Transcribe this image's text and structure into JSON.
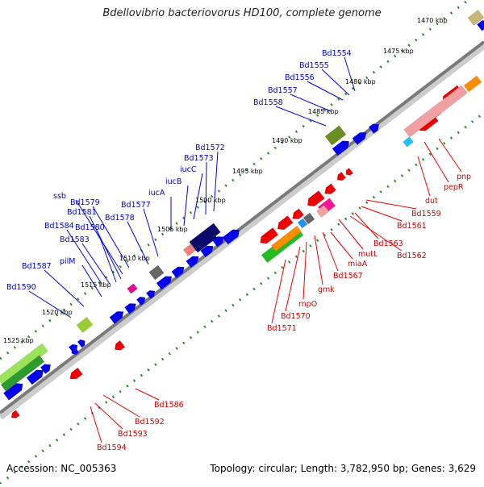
{
  "title": "Bdellovibrio bacteriovorus HD100, complete genome",
  "footer": {
    "accession": "Accession: NC_005363",
    "summary": "Topology: circular; Length: 3,782,950 bp; Genes: 3,629"
  },
  "colors": {
    "forward_cds": "#0000ee",
    "forward_label": "#0000cc",
    "reverse_cds": "#ee0000",
    "reverse_label": "#cc0000",
    "backbone": "#888888",
    "ruler_dots": "#2e8b2e"
  },
  "ruler_labels": [
    {
      "text": "1470 kbp",
      "kbp": 1470
    },
    {
      "text": "1475 kbp",
      "kbp": 1475
    },
    {
      "text": "1480 kbp",
      "kbp": 1480
    },
    {
      "text": "1485 kbp",
      "kbp": 1485
    },
    {
      "text": "1490 kbp",
      "kbp": 1490
    },
    {
      "text": "1495 kbp",
      "kbp": 1495
    },
    {
      "text": "1500 kbp",
      "kbp": 1500
    },
    {
      "text": "1505 kbp",
      "kbp": 1505
    },
    {
      "text": "1510 kbp",
      "kbp": 1510
    },
    {
      "text": "1515 kbp",
      "kbp": 1515
    },
    {
      "text": "1520 kbp",
      "kbp": 1520
    },
    {
      "text": "1525 kbp",
      "kbp": 1525
    }
  ],
  "forward_labels": [
    "Bd1554",
    "Bd1555",
    "Bd1556",
    "Bd1557",
    "Bd1558",
    "Bd1572",
    "Bd1573",
    "iucC",
    "iucB",
    "iucA",
    "Bd1577",
    "ssb",
    "Bd1579",
    "Bd1578",
    "Bd1581",
    "Bd1580",
    "Bd1584",
    "Bd1583",
    "pilM",
    "Bd1587",
    "Bd1590"
  ],
  "reverse_labels": [
    "pnp",
    "pepR",
    "dut",
    "Bd1559",
    "Bd1561",
    "Bd1563",
    "Bd1562",
    "mutL",
    "miaA",
    "Bd1567",
    "gmk",
    "rnpO",
    "Bd1570",
    "Bd1571",
    "Bd1586",
    "Bd1592",
    "Bd1593",
    "Bd1594"
  ]
}
